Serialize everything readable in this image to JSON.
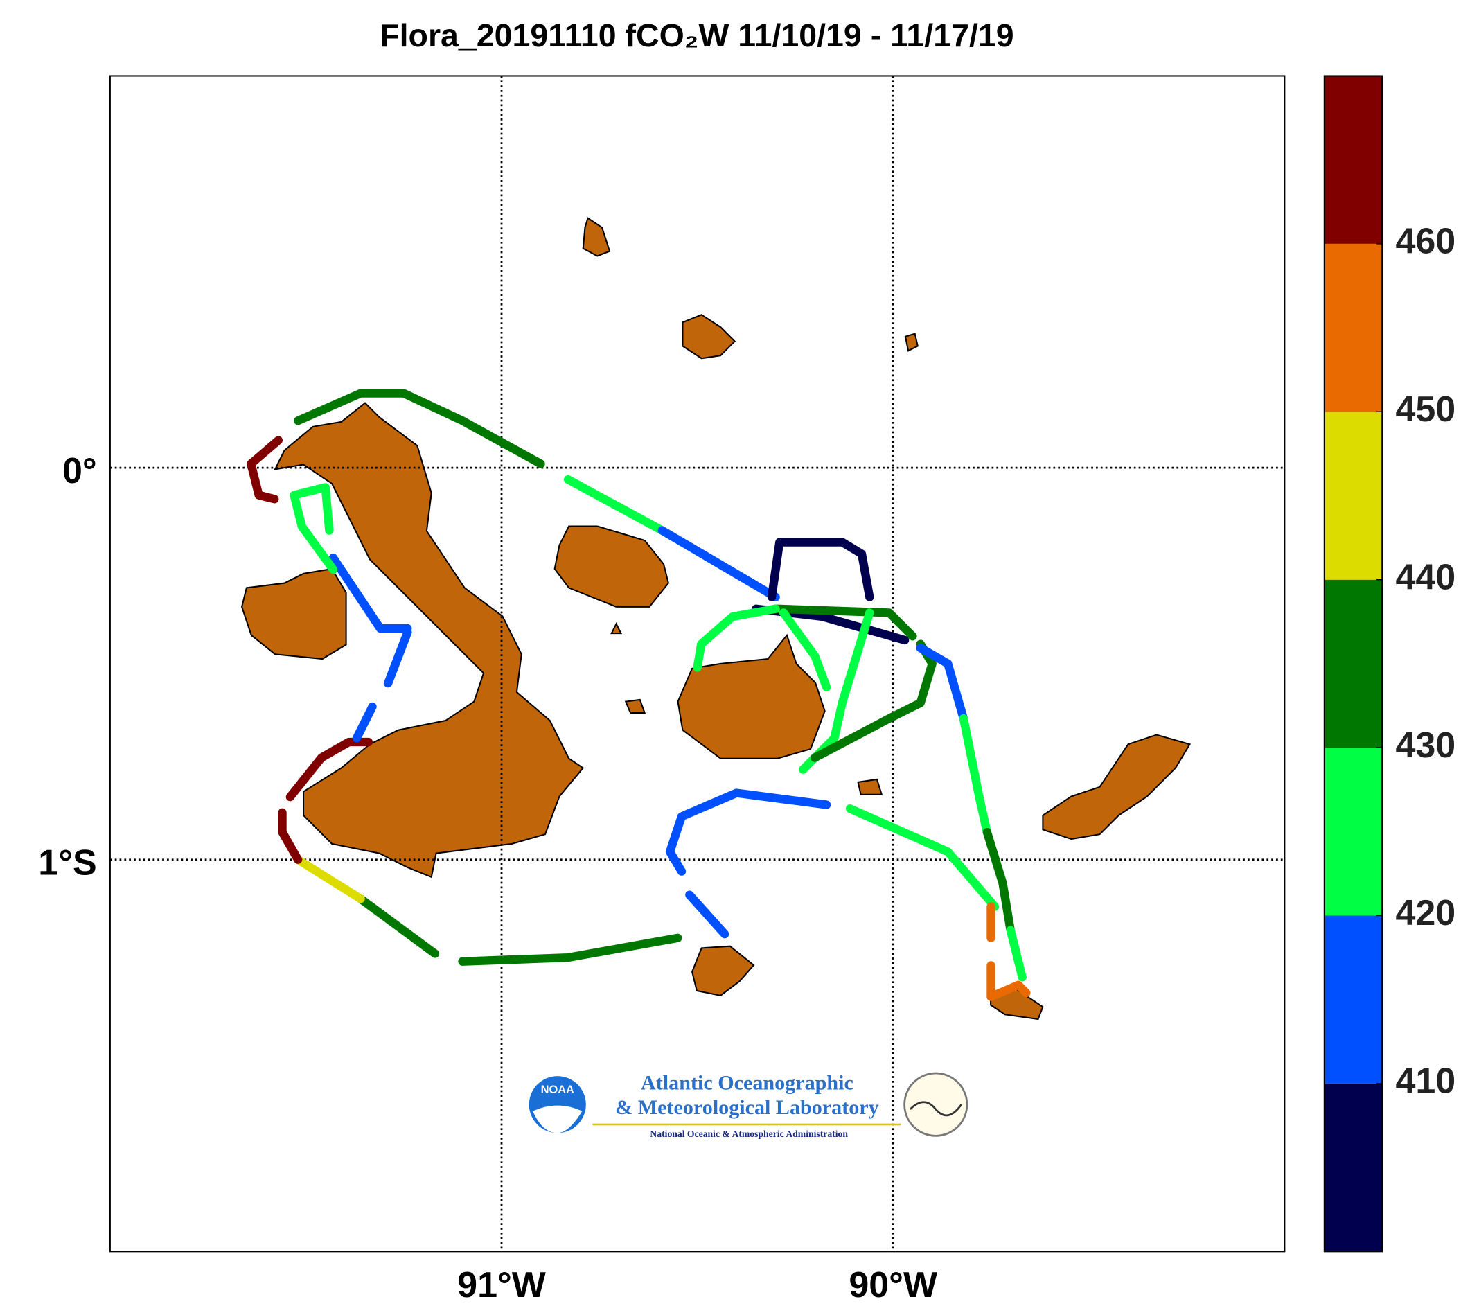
{
  "chart_data": {
    "type": "track_map",
    "title": "Flora_20191110 fCO₂W 11/10/19 - 11/17/19",
    "xlim": [
      -92,
      -89
    ],
    "ylim": [
      -2,
      1
    ],
    "xticks": [
      {
        "value": -91,
        "label": "91°W"
      },
      {
        "value": -90,
        "label": "90°W"
      }
    ],
    "yticks": [
      {
        "value": 0,
        "label": "0°"
      },
      {
        "value": -1,
        "label": "1°S"
      }
    ],
    "grid": true,
    "colorbar": {
      "lim": [
        400,
        470
      ],
      "ticks": [
        410,
        420,
        430,
        440,
        450,
        460
      ],
      "colors": [
        "#00004f",
        "#0050ff",
        "#00ff44",
        "#007800",
        "#dcdc00",
        "#e86a00",
        "#800000"
      ]
    },
    "tracks": [
      {
        "lon": [
          -91.52,
          -91.36,
          -91.25,
          -91.1,
          -90.9
        ],
        "lat": [
          0.12,
          0.19,
          0.19,
          0.12,
          0.01
        ],
        "value": 432
      },
      {
        "lon": [
          -90.83,
          -90.59
        ],
        "lat": [
          -0.03,
          -0.16
        ],
        "value": 422
      },
      {
        "lon": [
          -90.59,
          -90.3
        ],
        "lat": [
          -0.16,
          -0.33
        ],
        "value": 415
      },
      {
        "lon": [
          -90.31,
          -90.29,
          -90.13,
          -90.08,
          -90.06
        ],
        "lat": [
          -0.33,
          -0.19,
          -0.19,
          -0.22,
          -0.33
        ],
        "value": 405
      },
      {
        "lon": [
          -90.35,
          -90.18,
          -89.97
        ],
        "lat": [
          -0.36,
          -0.38,
          -0.44
        ],
        "value": 405
      },
      {
        "lon": [
          -90.3,
          -90.01,
          -89.95
        ],
        "lat": [
          -0.36,
          -0.37,
          -0.43
        ],
        "value": 433
      },
      {
        "lon": [
          -90.3,
          -90.41,
          -90.49,
          -90.5
        ],
        "lat": [
          -0.36,
          -0.38,
          -0.45,
          -0.51
        ],
        "value": 425
      },
      {
        "lon": [
          -90.28,
          -90.2,
          -90.17
        ],
        "lat": [
          -0.37,
          -0.48,
          -0.56
        ],
        "value": 425
      },
      {
        "lon": [
          -90.06,
          -90.13,
          -90.15,
          -90.23
        ],
        "lat": [
          -0.37,
          -0.6,
          -0.69,
          -0.77
        ],
        "value": 423
      },
      {
        "lon": [
          -90.2,
          -90.01,
          -89.93,
          -89.9,
          -89.93
        ],
        "lat": [
          -0.74,
          -0.64,
          -0.6,
          -0.5,
          -0.45
        ],
        "value": 432
      },
      {
        "lon": [
          -89.93,
          -89.86,
          -89.82
        ],
        "lat": [
          -0.46,
          -0.5,
          -0.64
        ],
        "value": 415
      },
      {
        "lon": [
          -89.82,
          -89.78,
          -89.76
        ],
        "lat": [
          -0.64,
          -0.84,
          -0.93
        ],
        "value": 425
      },
      {
        "lon": [
          -89.76,
          -89.72,
          -89.7
        ],
        "lat": [
          -0.93,
          -1.06,
          -1.18
        ],
        "value": 438
      },
      {
        "lon": [
          -89.7,
          -89.67
        ],
        "lat": [
          -1.18,
          -1.3
        ],
        "value": 425
      },
      {
        "lon": [
          -90.17,
          -90.4,
          -90.54,
          -90.57,
          -90.54
        ],
        "lat": [
          -0.86,
          -0.83,
          -0.89,
          -0.98,
          -1.03
        ],
        "value": 414
      },
      {
        "lon": [
          -90.52,
          -90.43
        ],
        "lat": [
          -1.09,
          -1.19
        ],
        "value": 414
      },
      {
        "lon": [
          -90.11,
          -89.86,
          -89.74
        ],
        "lat": [
          -0.87,
          -0.98,
          -1.12
        ],
        "value": 427
      },
      {
        "lon": [
          -89.75,
          -89.75
        ],
        "lat": [
          -1.12,
          -1.2
        ],
        "value": 455
      },
      {
        "lon": [
          -89.75,
          -89.75,
          -89.68,
          -89.66
        ],
        "lat": [
          -1.27,
          -1.35,
          -1.32,
          -1.34
        ],
        "value": 455
      },
      {
        "lon": [
          -90.55,
          -90.83,
          -91.1
        ],
        "lat": [
          -1.2,
          -1.25,
          -1.26
        ],
        "value": 432
      },
      {
        "lon": [
          -91.17,
          -91.36
        ],
        "lat": [
          -1.24,
          -1.1
        ],
        "value": 432
      },
      {
        "lon": [
          -91.36,
          -91.52
        ],
        "lat": [
          -1.1,
          -1.0
        ],
        "value": 445
      },
      {
        "lon": [
          -91.52,
          -91.56,
          -91.56
        ],
        "lat": [
          -1.0,
          -0.93,
          -0.88
        ],
        "value": 465
      },
      {
        "lon": [
          -91.54,
          -91.46,
          -91.39,
          -91.34
        ],
        "lat": [
          -0.84,
          -0.74,
          -0.7,
          -0.7
        ],
        "value": 465
      },
      {
        "lon": [
          -91.37,
          -91.33
        ],
        "lat": [
          -0.69,
          -0.61
        ],
        "value": 415
      },
      {
        "lon": [
          -91.29,
          -91.24
        ],
        "lat": [
          -0.55,
          -0.42
        ],
        "value": 415
      },
      {
        "lon": [
          -91.24,
          -91.31,
          -91.39,
          -91.43
        ],
        "lat": [
          -0.41,
          -0.41,
          -0.29,
          -0.23
        ],
        "value": 415
      },
      {
        "lon": [
          -91.43,
          -91.51,
          -91.53,
          -91.45,
          -91.44
        ],
        "lat": [
          -0.26,
          -0.15,
          -0.07,
          -0.05,
          -0.16
        ],
        "value": 425
      },
      {
        "lon": [
          -91.57,
          -91.64,
          -91.62,
          -91.58
        ],
        "lat": [
          0.07,
          0.01,
          -0.07,
          -0.08
        ],
        "value": 462
      }
    ],
    "logo": {
      "badge": "NOAA",
      "line1": "Atlantic Oceanographic",
      "line2": "& Meteorological Laboratory",
      "line3": "National Oceanic & Atmospheric Administration"
    }
  }
}
